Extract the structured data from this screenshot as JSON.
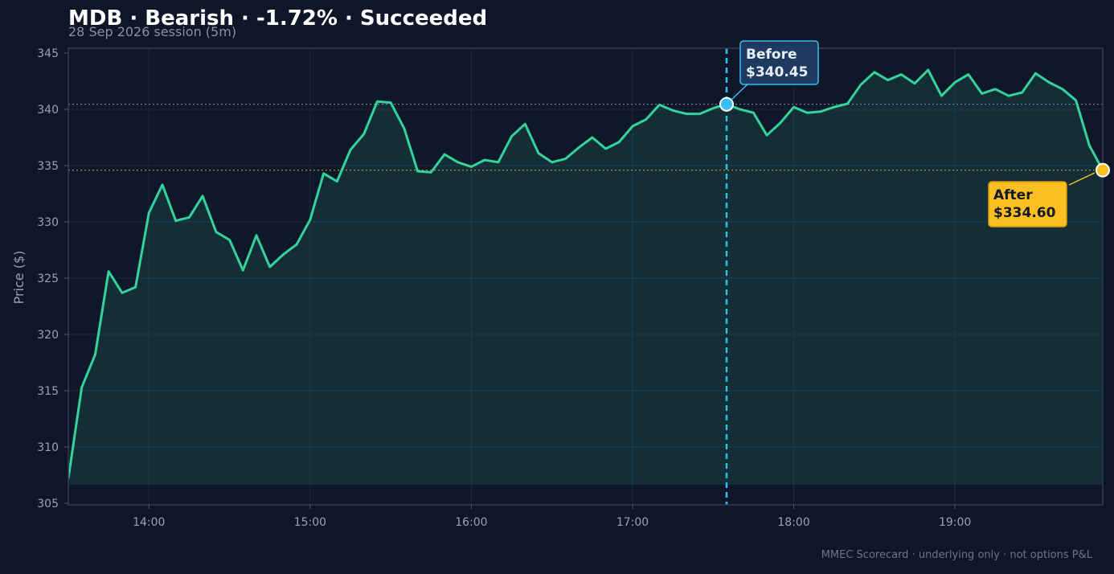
{
  "title": "MDB · Bearish · -1.72% · Succeeded",
  "subtitle": "28 Sep 2026 session (5m)",
  "footer": "MMEC Scorecard · underlying only · not options P&L",
  "colors": {
    "background": "#0e1628",
    "plot_background": "#0f172a",
    "line": "#34d399",
    "before": "#38bdf8",
    "after": "#fbbf24",
    "grid": "#1c2a3c"
  },
  "chart_data": {
    "type": "area",
    "xlabel": "",
    "ylabel": "Price ($)",
    "ylim": [
      305,
      345
    ],
    "yticks": [
      305,
      310,
      315,
      320,
      325,
      330,
      335,
      340,
      345
    ],
    "xticks": [
      "14:00",
      "15:00",
      "16:00",
      "17:00",
      "18:00",
      "19:00"
    ],
    "x_start": "13:30",
    "x_end": "19:55",
    "interval_minutes": 5,
    "grid": true,
    "series": [
      {
        "values": [
          307.2,
          315.3,
          318.2,
          325.6,
          323.7,
          324.2,
          330.8,
          333.3,
          330.1,
          330.4,
          332.3,
          329.1,
          328.4,
          325.7,
          328.8,
          326.0,
          327.1,
          328.0,
          330.2,
          334.3,
          333.6,
          336.4,
          337.8,
          340.7,
          340.6,
          338.3,
          334.5,
          334.4,
          336.0,
          335.3,
          334.9,
          335.5,
          335.3,
          337.6,
          338.7,
          336.1,
          335.3,
          335.6,
          336.6,
          337.5,
          336.5,
          337.1,
          338.5,
          339.1,
          340.4,
          339.9,
          339.6,
          339.6,
          340.1,
          340.45,
          340.0,
          339.7,
          337.7,
          338.8,
          340.2,
          339.7,
          339.8,
          340.2,
          340.5,
          342.2,
          343.3,
          342.6,
          343.1,
          342.3,
          343.5,
          341.2,
          342.4,
          343.1,
          341.4,
          341.8,
          341.2,
          341.5,
          343.2,
          342.4,
          341.8,
          340.8,
          336.8,
          334.6
        ]
      }
    ],
    "annotations": [
      {
        "label": "Before",
        "price_label": "$340.45",
        "time": "17:35",
        "value": 340.45
      },
      {
        "label": "After",
        "price_label": "$334.60",
        "time": "19:55",
        "value": 334.6
      }
    ]
  }
}
